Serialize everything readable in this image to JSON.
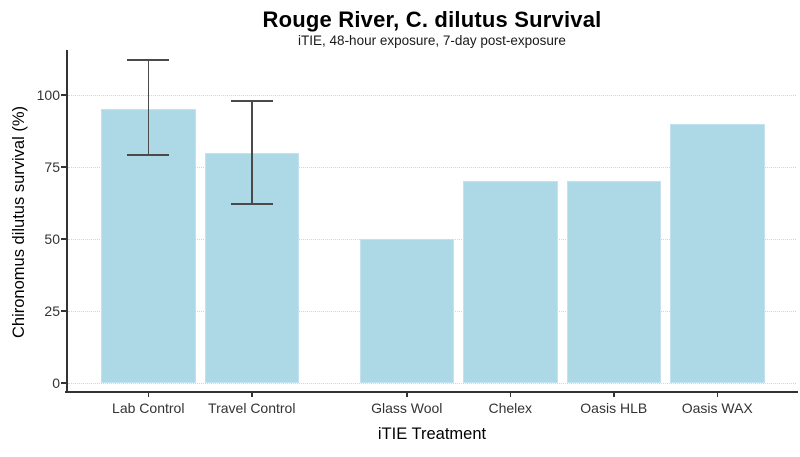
{
  "chart_data": {
    "type": "bar",
    "title": "Rouge River, C. dilutus Survival",
    "subtitle": "iTIE, 48-hour exposure, 7-day post-exposure",
    "xlabel": "iTIE Treatment",
    "ylabel": "Chironomus dilutus survival (%)",
    "categories": [
      "Lab Control",
      "Travel Control",
      "Glass Wool",
      "Chelex",
      "Oasis HLB",
      "Oasis WAX"
    ],
    "values": [
      95,
      80,
      50,
      70,
      70,
      90
    ],
    "error_bars": [
      {
        "category": "Lab Control",
        "ymin": 79,
        "ymax": 112
      },
      {
        "category": "Travel Control",
        "ymin": 62,
        "ymax": 98
      }
    ],
    "yticks": [
      0,
      25,
      50,
      75,
      100
    ],
    "ylim": [
      0,
      113
    ],
    "grid": {
      "horizontal": true,
      "vertical": false,
      "style": "dotted"
    },
    "legend": "none",
    "group_gap_after": "Travel Control",
    "colors": {
      "bar_fill": "#ADD8E6",
      "bar_border": "#C3E2EF",
      "error_bar": "#4A4A4A",
      "axis_line": "#333333",
      "gridline": "#D4D4D4",
      "title_text": "#000000",
      "axis_text": "#333333"
    }
  }
}
